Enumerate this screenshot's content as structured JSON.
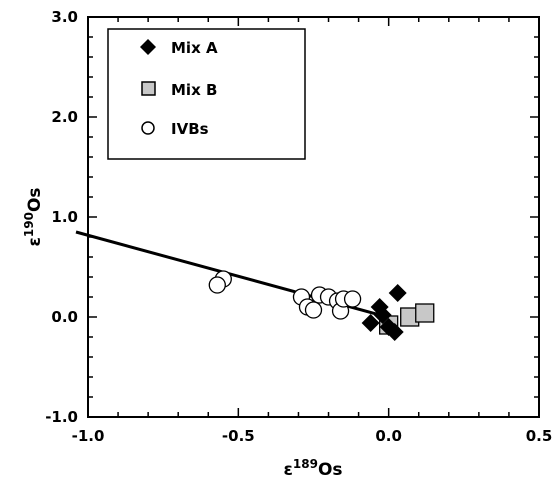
{
  "chart_data": {
    "type": "scatter",
    "xlabel": "ε189Os",
    "ylabel": "ε190Os",
    "xlabel_parts": {
      "base": "ε",
      "sup": "189",
      "rest": "Os"
    },
    "ylabel_parts": {
      "base": "ε",
      "sup": "190",
      "rest": "Os"
    },
    "xlim": [
      -1.0,
      0.5
    ],
    "ylim": [
      -1.0,
      3.0
    ],
    "x_ticks": [
      -1.0,
      -0.5,
      0.0,
      0.5
    ],
    "y_ticks": [
      -1.0,
      0.0,
      1.0,
      2.0,
      3.0
    ],
    "x_tick_labels": [
      "-1.0",
      "-0.5",
      "0.0",
      "0.5"
    ],
    "y_tick_labels": [
      "-1.0",
      "0.0",
      "1.0",
      "2.0",
      "3.0"
    ],
    "grid": false,
    "legend_position": "top-left",
    "series": [
      {
        "name": "Mix A",
        "marker": "diamond",
        "color": "#000000",
        "points": [
          {
            "x": 0.03,
            "y": 0.24
          },
          {
            "x": -0.03,
            "y": 0.1
          },
          {
            "x": -0.06,
            "y": -0.06
          },
          {
            "x": 0.0,
            "y": -0.1
          },
          {
            "x": 0.02,
            "y": -0.15
          },
          {
            "x": -0.02,
            "y": 0.02
          }
        ]
      },
      {
        "name": "Mix B",
        "marker": "square",
        "color": "#c8c8c8",
        "points": [
          {
            "x": 0.0,
            "y": -0.08
          },
          {
            "x": 0.07,
            "y": 0.0
          },
          {
            "x": 0.12,
            "y": 0.04
          }
        ]
      },
      {
        "name": "IVBs",
        "marker": "circle",
        "color": "#ffffff",
        "points": [
          {
            "x": -0.55,
            "y": 0.38
          },
          {
            "x": -0.57,
            "y": 0.32
          },
          {
            "x": -0.29,
            "y": 0.2
          },
          {
            "x": -0.27,
            "y": 0.1
          },
          {
            "x": -0.25,
            "y": 0.07
          },
          {
            "x": -0.23,
            "y": 0.22
          },
          {
            "x": -0.2,
            "y": 0.2
          },
          {
            "x": -0.17,
            "y": 0.16
          },
          {
            "x": -0.16,
            "y": 0.06
          },
          {
            "x": -0.15,
            "y": 0.18
          },
          {
            "x": -0.12,
            "y": 0.18
          }
        ]
      }
    ],
    "fit_line": {
      "x": [
        -1.0,
        0.02
      ],
      "y": [
        0.76,
        -0.02
      ]
    }
  }
}
